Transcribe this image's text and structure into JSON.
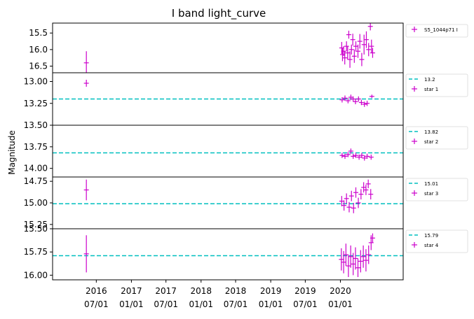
{
  "title": "I band light_curve",
  "ylabel": "Magnitude",
  "colors": {
    "data": "#cc00cc",
    "ref": "#00bfbf",
    "axes": "#000000"
  },
  "x_ticks": [
    {
      "date": "2016-07-01",
      "l1": "2016",
      "l2": "07/01"
    },
    {
      "date": "2017-01-01",
      "l1": "2017",
      "l2": "01/01"
    },
    {
      "date": "2017-07-01",
      "l1": "2017",
      "l2": "07/01"
    },
    {
      "date": "2018-01-01",
      "l1": "2018",
      "l2": "01/01"
    },
    {
      "date": "2018-07-01",
      "l1": "2018",
      "l2": "07/01"
    },
    {
      "date": "2019-01-01",
      "l1": "2019",
      "l2": "01/01"
    },
    {
      "date": "2019-07-01",
      "l1": "2019",
      "l2": "07/01"
    },
    {
      "date": "2020-01-01",
      "l1": "2020",
      "l2": "01/01"
    }
  ],
  "chart_data": [
    {
      "type": "scatter",
      "ylim": [
        16.7,
        15.2
      ],
      "yticks": [
        "15.5",
        "16.0",
        "16.5"
      ],
      "ref_line": null,
      "series": [
        {
          "name": "S5_1044p71 I",
          "points": [
            {
              "date": "2016-05-10",
              "y": 16.4,
              "err": 0.35
            },
            {
              "date": "2020-01-08",
              "y": 15.95,
              "err": 0.18
            },
            {
              "date": "2020-01-12",
              "y": 16.15,
              "err": 0.2
            },
            {
              "date": "2020-01-18",
              "y": 16.05,
              "err": 0.15
            },
            {
              "date": "2020-01-24",
              "y": 16.25,
              "err": 0.2
            },
            {
              "date": "2020-02-02",
              "y": 15.9,
              "err": 0.15
            },
            {
              "date": "2020-02-08",
              "y": 16.1,
              "err": 0.2
            },
            {
              "date": "2020-02-14",
              "y": 15.55,
              "err": 0.12
            },
            {
              "date": "2020-02-20",
              "y": 16.3,
              "err": 0.25
            },
            {
              "date": "2020-02-28",
              "y": 16.0,
              "err": 0.15
            },
            {
              "date": "2020-03-06",
              "y": 15.7,
              "err": 0.18
            },
            {
              "date": "2020-03-14",
              "y": 16.2,
              "err": 0.2
            },
            {
              "date": "2020-03-22",
              "y": 15.9,
              "err": 0.15
            },
            {
              "date": "2020-04-02",
              "y": 16.05,
              "err": 0.2
            },
            {
              "date": "2020-04-12",
              "y": 15.75,
              "err": 0.22
            },
            {
              "date": "2020-04-22",
              "y": 16.3,
              "err": 0.2
            },
            {
              "date": "2020-05-04",
              "y": 15.85,
              "err": 0.3
            },
            {
              "date": "2020-05-16",
              "y": 15.7,
              "err": 0.25
            },
            {
              "date": "2020-05-28",
              "y": 16.0,
              "err": 0.2
            },
            {
              "date": "2020-06-06",
              "y": 15.3,
              "err": 0.12
            },
            {
              "date": "2020-06-12",
              "y": 15.9,
              "err": 0.2
            },
            {
              "date": "2020-06-18",
              "y": 16.1,
              "err": 0.15
            }
          ]
        }
      ]
    },
    {
      "type": "scatter",
      "ylim": [
        13.5,
        12.9
      ],
      "yticks": [
        "13.00",
        "13.25",
        "13.50"
      ],
      "ref_line": {
        "y": 13.2,
        "label": "13.2"
      },
      "series": [
        {
          "name": "star 1",
          "points": [
            {
              "date": "2016-05-10",
              "y": 13.02,
              "err": 0.04
            },
            {
              "date": "2020-01-10",
              "y": 13.21,
              "err": 0.03
            },
            {
              "date": "2020-01-25",
              "y": 13.19,
              "err": 0.03
            },
            {
              "date": "2020-02-10",
              "y": 13.22,
              "err": 0.03
            },
            {
              "date": "2020-02-25",
              "y": 13.18,
              "err": 0.03
            },
            {
              "date": "2020-03-08",
              "y": 13.2,
              "err": 0.03
            },
            {
              "date": "2020-03-20",
              "y": 13.23,
              "err": 0.03
            },
            {
              "date": "2020-04-05",
              "y": 13.2,
              "err": 0.03
            },
            {
              "date": "2020-04-20",
              "y": 13.24,
              "err": 0.03
            },
            {
              "date": "2020-05-06",
              "y": 13.26,
              "err": 0.03
            },
            {
              "date": "2020-05-20",
              "y": 13.25,
              "err": 0.03
            },
            {
              "date": "2020-06-14",
              "y": 13.17,
              "err": 0.02
            }
          ]
        }
      ]
    },
    {
      "type": "scatter",
      "ylim": [
        14.1,
        13.5
      ],
      "yticks": [
        "13.75",
        "14.00"
      ],
      "ref_line": {
        "y": 13.82,
        "label": "13.82"
      },
      "series": [
        {
          "name": "star 2",
          "points": [
            {
              "date": "2020-01-10",
              "y": 13.85,
              "err": 0.03
            },
            {
              "date": "2020-01-25",
              "y": 13.86,
              "err": 0.03
            },
            {
              "date": "2020-02-10",
              "y": 13.84,
              "err": 0.03
            },
            {
              "date": "2020-02-25",
              "y": 13.8,
              "err": 0.03
            },
            {
              "date": "2020-03-08",
              "y": 13.86,
              "err": 0.03
            },
            {
              "date": "2020-03-22",
              "y": 13.85,
              "err": 0.03
            },
            {
              "date": "2020-04-08",
              "y": 13.87,
              "err": 0.03
            },
            {
              "date": "2020-04-22",
              "y": 13.85,
              "err": 0.03
            },
            {
              "date": "2020-05-06",
              "y": 13.88,
              "err": 0.03
            },
            {
              "date": "2020-05-20",
              "y": 13.86,
              "err": 0.03
            },
            {
              "date": "2020-06-10",
              "y": 13.87,
              "err": 0.03
            }
          ]
        }
      ]
    },
    {
      "type": "scatter",
      "ylim": [
        15.3,
        14.7
      ],
      "yticks": [
        "14.75",
        "15.00",
        "15.25"
      ],
      "ref_line": {
        "y": 15.01,
        "label": "15.01"
      },
      "series": [
        {
          "name": "star 3",
          "points": [
            {
              "date": "2016-05-10",
              "y": 14.85,
              "err": 0.12
            },
            {
              "date": "2020-01-08",
              "y": 14.98,
              "err": 0.06
            },
            {
              "date": "2020-01-20",
              "y": 15.03,
              "err": 0.06
            },
            {
              "date": "2020-02-02",
              "y": 14.95,
              "err": 0.06
            },
            {
              "date": "2020-02-16",
              "y": 15.05,
              "err": 0.06
            },
            {
              "date": "2020-02-28",
              "y": 14.92,
              "err": 0.06
            },
            {
              "date": "2020-03-10",
              "y": 15.06,
              "err": 0.06
            },
            {
              "date": "2020-03-22",
              "y": 14.88,
              "err": 0.06
            },
            {
              "date": "2020-04-04",
              "y": 15.0,
              "err": 0.06
            },
            {
              "date": "2020-04-18",
              "y": 14.9,
              "err": 0.06
            },
            {
              "date": "2020-05-02",
              "y": 14.82,
              "err": 0.06
            },
            {
              "date": "2020-05-14",
              "y": 14.85,
              "err": 0.06
            },
            {
              "date": "2020-05-26",
              "y": 14.78,
              "err": 0.05
            },
            {
              "date": "2020-06-08",
              "y": 14.9,
              "err": 0.06
            }
          ]
        }
      ]
    },
    {
      "type": "scatter",
      "ylim": [
        16.05,
        15.5
      ],
      "yticks": [
        "15.50",
        "15.75",
        "16.00"
      ],
      "ref_line": {
        "y": 15.79,
        "label": "15.79"
      },
      "series": [
        {
          "name": "star 4",
          "points": [
            {
              "date": "2016-05-10",
              "y": 15.77,
              "err": 0.2
            },
            {
              "date": "2020-01-06",
              "y": 15.83,
              "err": 0.12
            },
            {
              "date": "2020-01-18",
              "y": 15.86,
              "err": 0.12
            },
            {
              "date": "2020-01-30",
              "y": 15.78,
              "err": 0.12
            },
            {
              "date": "2020-02-12",
              "y": 15.9,
              "err": 0.12
            },
            {
              "date": "2020-02-24",
              "y": 15.8,
              "err": 0.12
            },
            {
              "date": "2020-03-08",
              "y": 15.88,
              "err": 0.12
            },
            {
              "date": "2020-03-20",
              "y": 15.82,
              "err": 0.12
            },
            {
              "date": "2020-04-02",
              "y": 15.92,
              "err": 0.1
            },
            {
              "date": "2020-04-16",
              "y": 15.85,
              "err": 0.12
            },
            {
              "date": "2020-04-30",
              "y": 15.8,
              "err": 0.12
            },
            {
              "date": "2020-05-14",
              "y": 15.84,
              "err": 0.12
            },
            {
              "date": "2020-05-28",
              "y": 15.78,
              "err": 0.1
            },
            {
              "date": "2020-06-10",
              "y": 15.65,
              "err": 0.08
            },
            {
              "date": "2020-06-18",
              "y": 15.6,
              "err": 0.05
            }
          ]
        }
      ]
    }
  ]
}
